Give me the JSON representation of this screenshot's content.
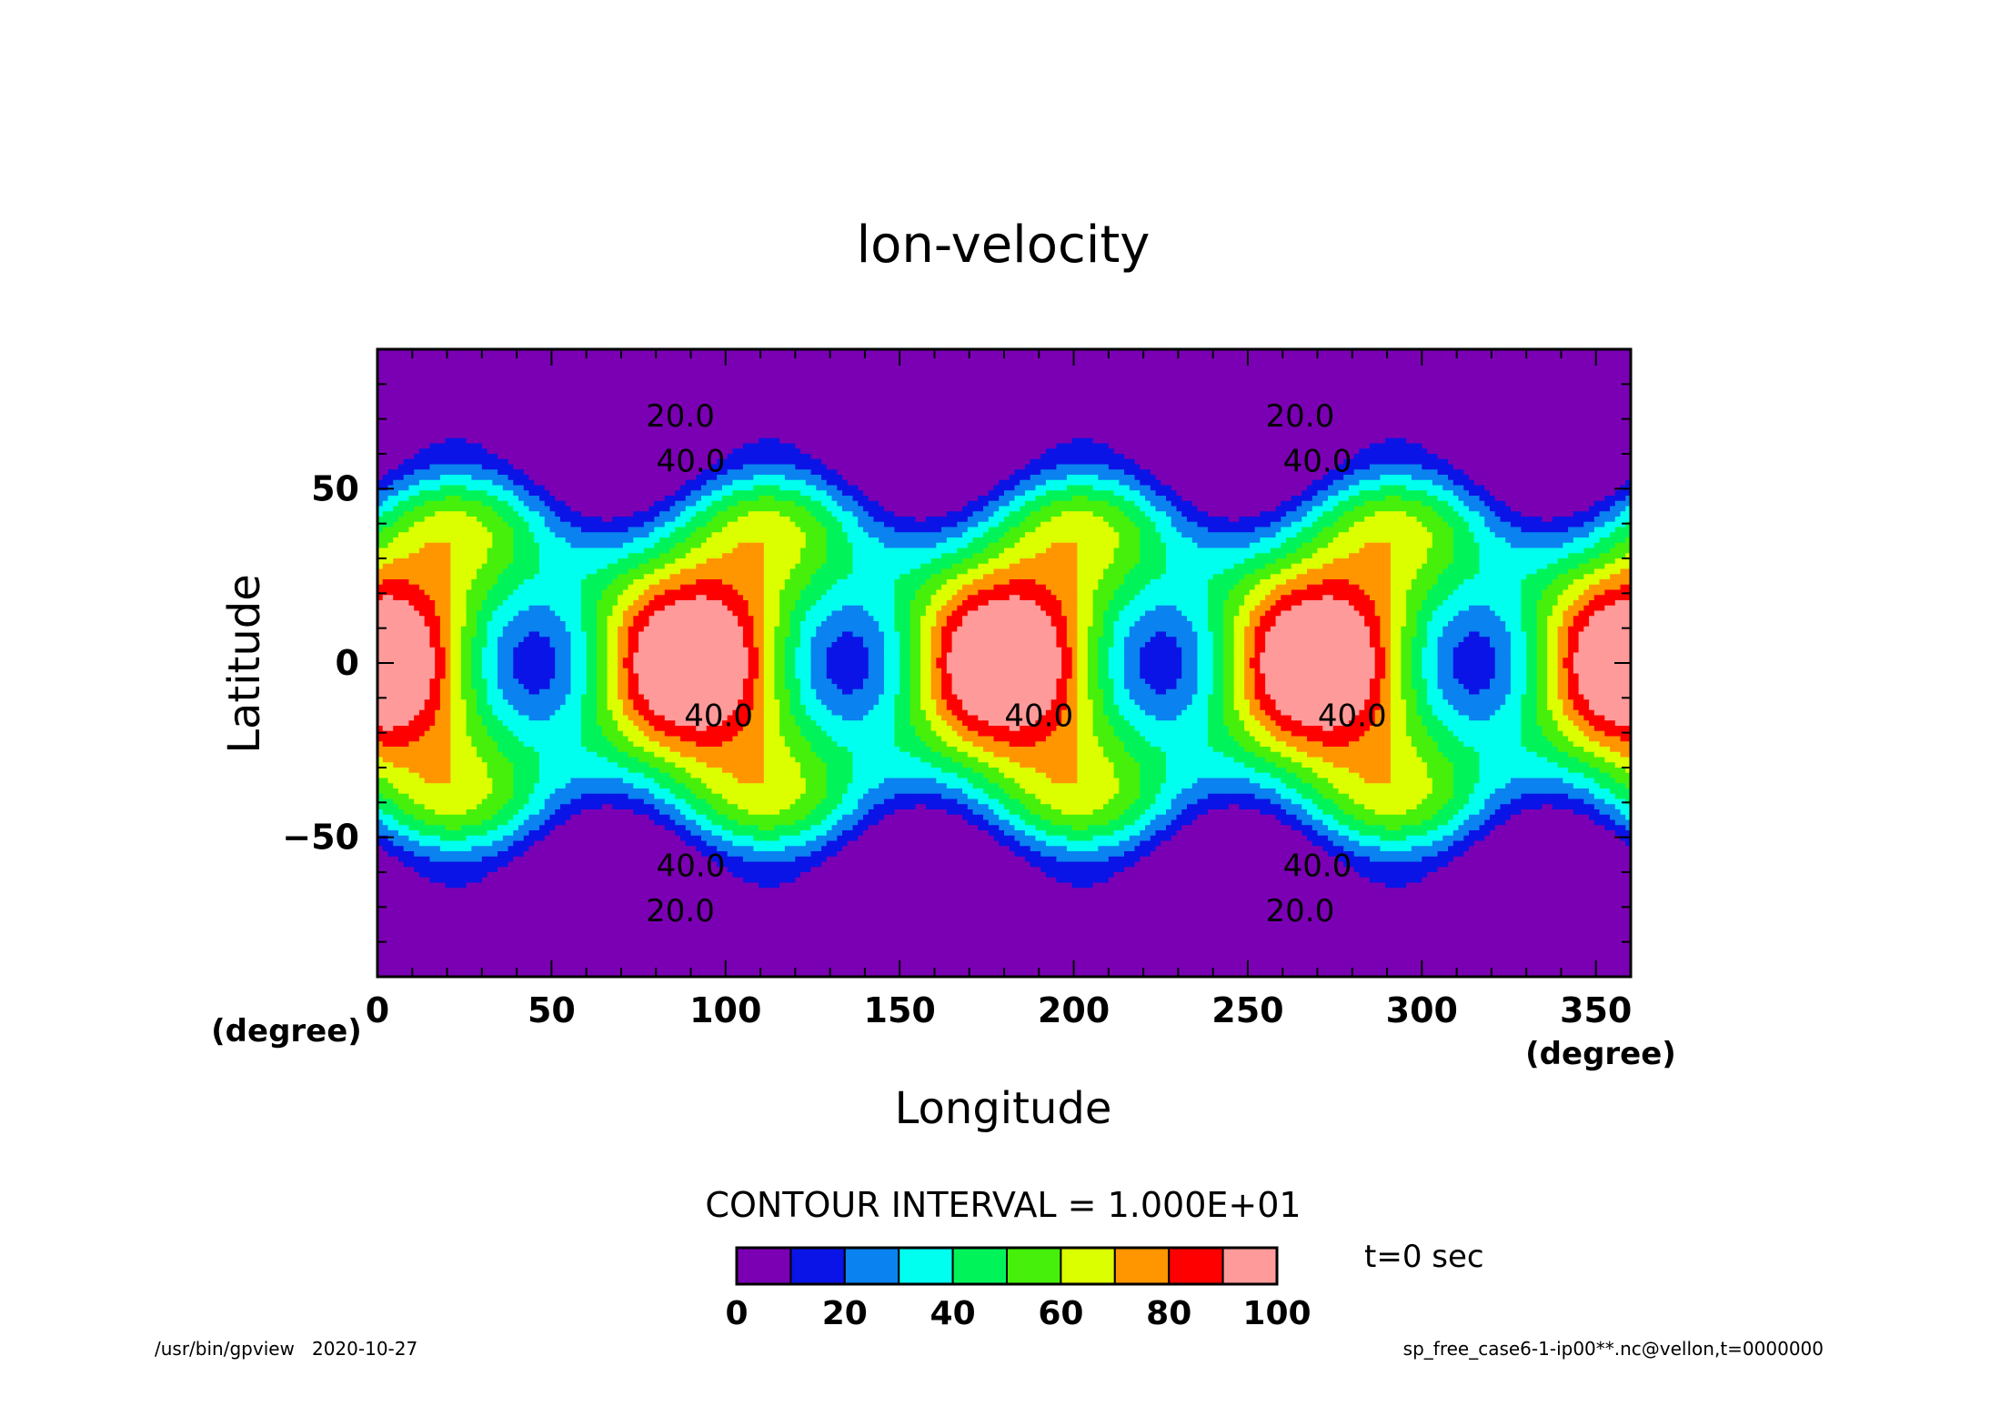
{
  "chart_data": {
    "type": "heatmap",
    "title": "lon-velocity",
    "xlabel": "Longitude",
    "ylabel": "Latitude",
    "x_unit": "(degree)",
    "y_unit": "(degree)",
    "xlim": [
      0,
      360
    ],
    "ylim": [
      -90,
      90
    ],
    "x_ticks": [
      0,
      50,
      100,
      150,
      200,
      250,
      300,
      350
    ],
    "y_ticks": [
      -50,
      0,
      50
    ],
    "contour_interval_text": "CONTOUR INTERVAL = 1.000E+01",
    "contour_interval": 10,
    "contour_labels": [
      {
        "text": "20.0",
        "lon": 87,
        "lat": 71
      },
      {
        "text": "40.0",
        "lon": 90,
        "lat": 58
      },
      {
        "text": "20.0",
        "lon": 265,
        "lat": 71
      },
      {
        "text": "40.0",
        "lon": 270,
        "lat": 58
      },
      {
        "text": "40.0",
        "lon": 98,
        "lat": -15
      },
      {
        "text": "40.0",
        "lon": 190,
        "lat": -15
      },
      {
        "text": "40.0",
        "lon": 280,
        "lat": -15
      },
      {
        "text": "40.0",
        "lon": 90,
        "lat": -58
      },
      {
        "text": "20.0",
        "lon": 87,
        "lat": -71
      },
      {
        "text": "40.0",
        "lon": 270,
        "lat": -58
      },
      {
        "text": "20.0",
        "lon": 265,
        "lat": -71
      }
    ],
    "colorbar": {
      "levels": [
        0,
        10,
        20,
        30,
        40,
        50,
        60,
        70,
        80,
        90,
        100
      ],
      "tick_labels": [
        "0",
        "20",
        "40",
        "60",
        "80",
        "100"
      ],
      "colors": [
        "#7b00b4",
        "#0a14e6",
        "#0a82f0",
        "#00ffef",
        "#00f45a",
        "#46f00a",
        "#dcff00",
        "#ff9600",
        "#ff0000",
        "#ff9a9a"
      ]
    },
    "grid": false
  },
  "annotations": {
    "time_label": "t=0 sec",
    "footer_left": "/usr/bin/gpview   2020-10-27",
    "footer_right": "sp_free_case6-1-ip00**.nc@vellon,t=0000000"
  }
}
